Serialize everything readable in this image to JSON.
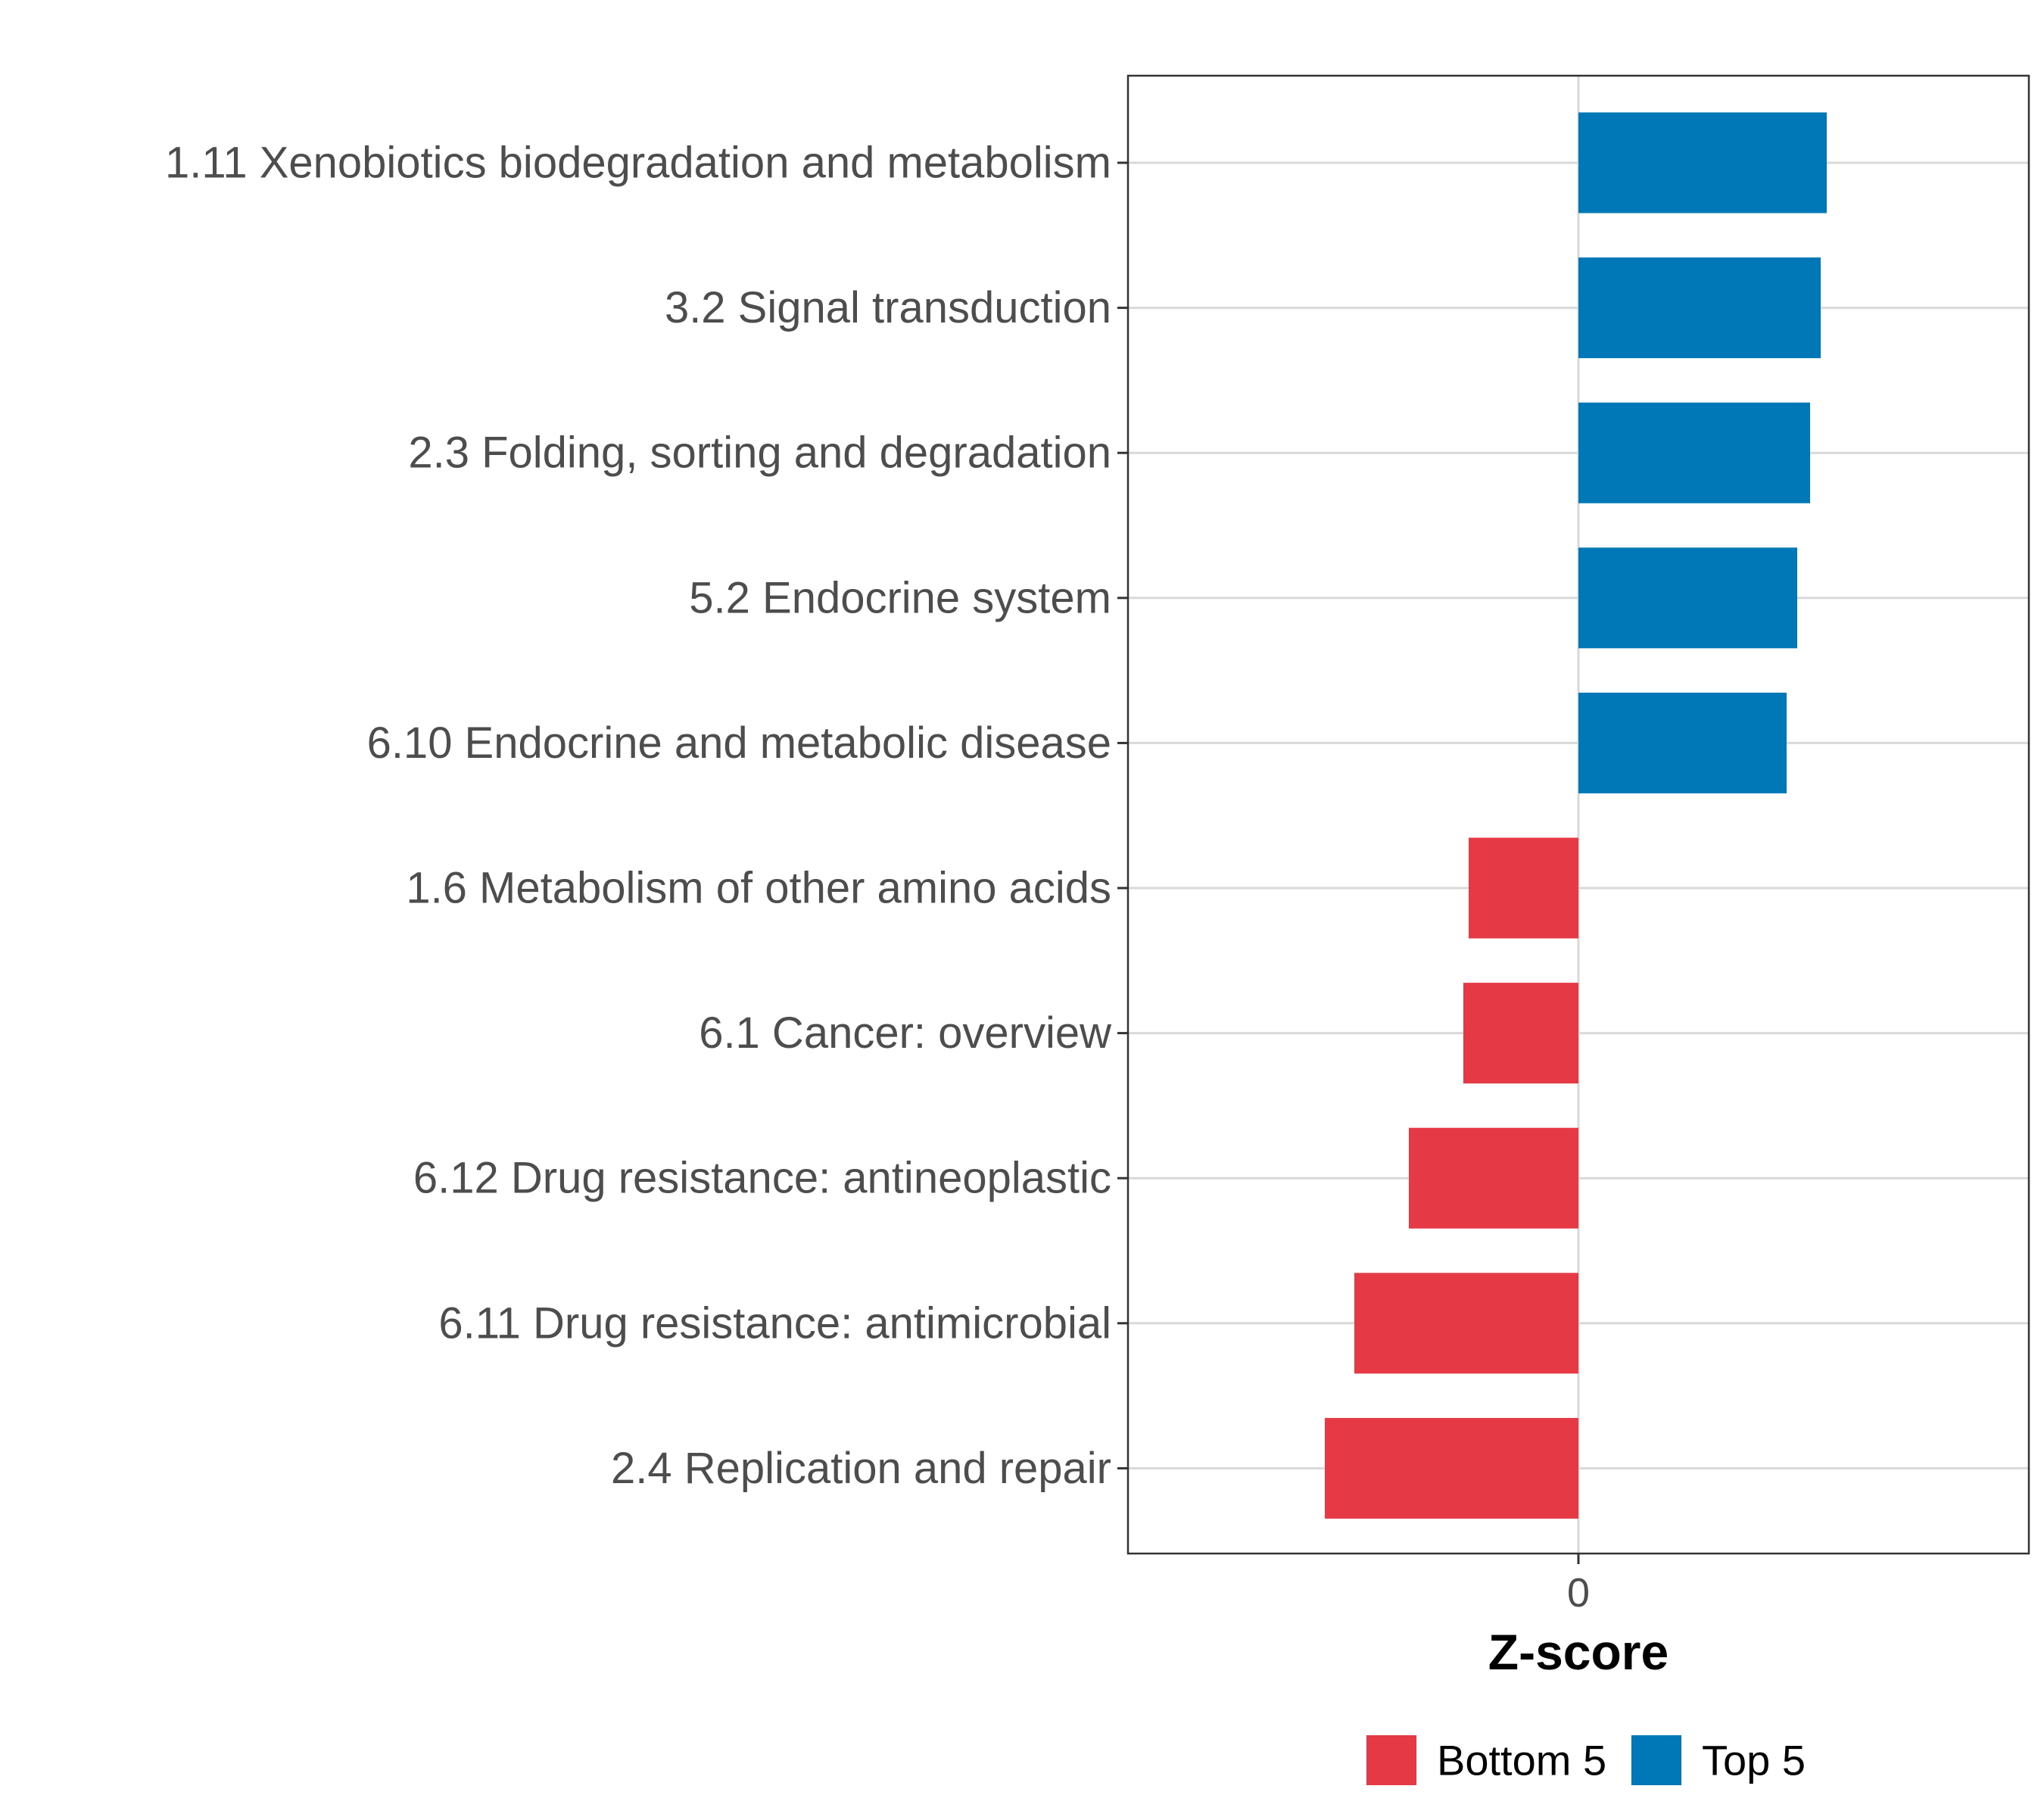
{
  "chart_data": {
    "type": "bar",
    "orientation": "horizontal",
    "title": "",
    "xlabel": "Z-score",
    "ylabel": "",
    "categories": [
      "1.11 Xenobiotics biodegradation and metabolism",
      "3.2 Signal transduction",
      "2.3 Folding, sorting and degradation",
      "5.2 Endocrine system",
      "6.10 Endocrine and metabolic disease",
      "1.6 Metabolism of other amino acids",
      "6.1 Cancer: overview",
      "6.12 Drug resistance: antineoplastic",
      "6.11 Drug resistance: antimicrobial",
      "2.4 Replication and repair"
    ],
    "values": [
      3.28,
      3.2,
      3.06,
      2.89,
      2.75,
      -1.45,
      -1.52,
      -2.24,
      -2.96,
      -3.35
    ],
    "groups": [
      "Top 5",
      "Top 5",
      "Top 5",
      "Top 5",
      "Top 5",
      "Bottom 5",
      "Bottom 5",
      "Bottom 5",
      "Bottom 5",
      "Bottom 5"
    ],
    "xlim": [
      -6,
      6
    ],
    "x_ticks": [
      0
    ],
    "x_tick_labels": [
      "0"
    ],
    "grid": true,
    "legend": {
      "position": "bottom",
      "entries": [
        {
          "label": "Bottom 5",
          "color": "#e63946"
        },
        {
          "label": "Top 5",
          "color": "#0077b6"
        }
      ]
    },
    "colors": {
      "Top 5": "#0077b6",
      "Bottom 5": "#e63946"
    }
  }
}
